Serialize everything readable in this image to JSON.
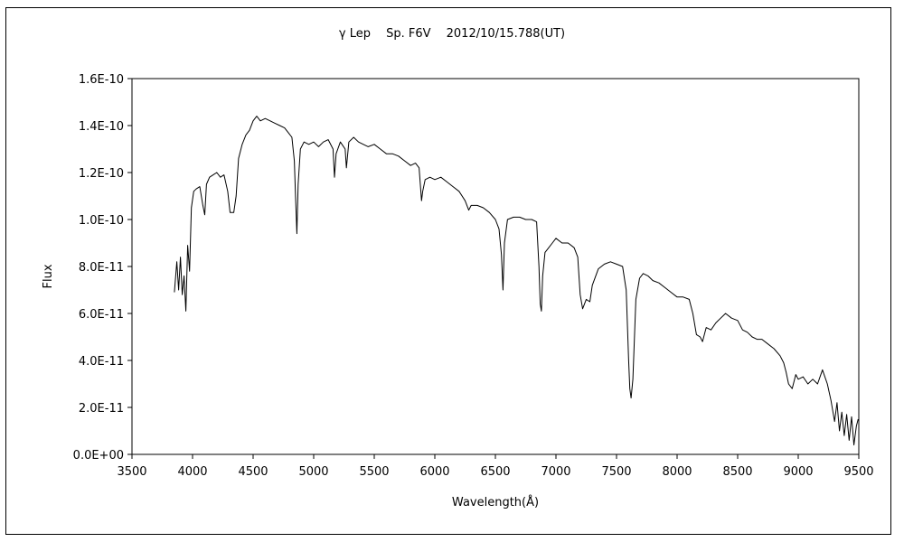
{
  "chart_data": {
    "type": "line",
    "title": "γ Lep　 Sp. F6V　 2012/10/15.788(UT)",
    "xlabel": "Wavelength(Å)",
    "ylabel": "Flux",
    "xlim": [
      3500,
      9500
    ],
    "ylim": [
      0,
      1.6e-10
    ],
    "x_ticks": [
      3500,
      4000,
      4500,
      5000,
      5500,
      6000,
      6500,
      7000,
      7500,
      8000,
      8500,
      9000,
      9500
    ],
    "x_tick_labels": [
      "3500",
      "4000",
      "4500",
      "5000",
      "5500",
      "6000",
      "6500",
      "7000",
      "7500",
      "8000",
      "8500",
      "9000",
      "9500"
    ],
    "y_ticks": [
      0,
      2e-11,
      4e-11,
      6e-11,
      8e-11,
      1e-10,
      1.2e-10,
      1.4e-10,
      1.6e-10
    ],
    "y_tick_labels": [
      "0.0E+00",
      "2.0E-11",
      "4.0E-11",
      "6.0E-11",
      "8.0E-11",
      "1.0E-10",
      "1.2E-10",
      "1.4E-10",
      "1.6E-10"
    ],
    "grid": false,
    "legend": "none",
    "series": [
      {
        "color": "#000000",
        "points": [
          [
            3850,
            6.9e-11
          ],
          [
            3870,
            8.2e-11
          ],
          [
            3885,
            7e-11
          ],
          [
            3900,
            8.4e-11
          ],
          [
            3915,
            6.8e-11
          ],
          [
            3930,
            7.6e-11
          ],
          [
            3945,
            6.1e-11
          ],
          [
            3960,
            8.9e-11
          ],
          [
            3975,
            7.8e-11
          ],
          [
            3990,
            1.05e-10
          ],
          [
            4010,
            1.12e-10
          ],
          [
            4030,
            1.13e-10
          ],
          [
            4060,
            1.14e-10
          ],
          [
            4085,
            1.06e-10
          ],
          [
            4101,
            1.02e-10
          ],
          [
            4115,
            1.15e-10
          ],
          [
            4140,
            1.18e-10
          ],
          [
            4170,
            1.19e-10
          ],
          [
            4200,
            1.2e-10
          ],
          [
            4230,
            1.18e-10
          ],
          [
            4260,
            1.19e-10
          ],
          [
            4290,
            1.12e-10
          ],
          [
            4310,
            1.03e-10
          ],
          [
            4340,
            1.03e-10
          ],
          [
            4360,
            1.1e-10
          ],
          [
            4380,
            1.26e-10
          ],
          [
            4410,
            1.32e-10
          ],
          [
            4440,
            1.36e-10
          ],
          [
            4470,
            1.38e-10
          ],
          [
            4500,
            1.42e-10
          ],
          [
            4530,
            1.44e-10
          ],
          [
            4560,
            1.42e-10
          ],
          [
            4600,
            1.43e-10
          ],
          [
            4640,
            1.42e-10
          ],
          [
            4680,
            1.41e-10
          ],
          [
            4720,
            1.4e-10
          ],
          [
            4760,
            1.39e-10
          ],
          [
            4790,
            1.37e-10
          ],
          [
            4820,
            1.35e-10
          ],
          [
            4840,
            1.25e-10
          ],
          [
            4850,
            1.1e-10
          ],
          [
            4861,
            9.4e-11
          ],
          [
            4872,
            1.15e-10
          ],
          [
            4890,
            1.3e-10
          ],
          [
            4920,
            1.33e-10
          ],
          [
            4960,
            1.32e-10
          ],
          [
            5000,
            1.33e-10
          ],
          [
            5040,
            1.31e-10
          ],
          [
            5080,
            1.33e-10
          ],
          [
            5120,
            1.34e-10
          ],
          [
            5160,
            1.3e-10
          ],
          [
            5172,
            1.18e-10
          ],
          [
            5185,
            1.28e-10
          ],
          [
            5220,
            1.33e-10
          ],
          [
            5260,
            1.3e-10
          ],
          [
            5270,
            1.22e-10
          ],
          [
            5290,
            1.33e-10
          ],
          [
            5330,
            1.35e-10
          ],
          [
            5370,
            1.33e-10
          ],
          [
            5410,
            1.32e-10
          ],
          [
            5450,
            1.31e-10
          ],
          [
            5500,
            1.32e-10
          ],
          [
            5550,
            1.3e-10
          ],
          [
            5600,
            1.28e-10
          ],
          [
            5650,
            1.28e-10
          ],
          [
            5700,
            1.27e-10
          ],
          [
            5750,
            1.25e-10
          ],
          [
            5800,
            1.23e-10
          ],
          [
            5840,
            1.24e-10
          ],
          [
            5870,
            1.22e-10
          ],
          [
            5890,
            1.08e-10
          ],
          [
            5900,
            1.12e-10
          ],
          [
            5920,
            1.17e-10
          ],
          [
            5960,
            1.18e-10
          ],
          [
            6000,
            1.17e-10
          ],
          [
            6050,
            1.18e-10
          ],
          [
            6100,
            1.16e-10
          ],
          [
            6150,
            1.14e-10
          ],
          [
            6200,
            1.12e-10
          ],
          [
            6250,
            1.08e-10
          ],
          [
            6280,
            1.04e-10
          ],
          [
            6300,
            1.06e-10
          ],
          [
            6350,
            1.06e-10
          ],
          [
            6400,
            1.05e-10
          ],
          [
            6450,
            1.03e-10
          ],
          [
            6500,
            1e-10
          ],
          [
            6530,
            9.6e-11
          ],
          [
            6550,
            8.5e-11
          ],
          [
            6563,
            7e-11
          ],
          [
            6575,
            9e-11
          ],
          [
            6600,
            1e-10
          ],
          [
            6650,
            1.01e-10
          ],
          [
            6700,
            1.01e-10
          ],
          [
            6750,
            1e-10
          ],
          [
            6800,
            1e-10
          ],
          [
            6840,
            9.9e-11
          ],
          [
            6860,
            8e-11
          ],
          [
            6870,
            6.4e-11
          ],
          [
            6880,
            6.1e-11
          ],
          [
            6890,
            7.6e-11
          ],
          [
            6910,
            8.6e-11
          ],
          [
            6940,
            8.8e-11
          ],
          [
            6970,
            9e-11
          ],
          [
            7000,
            9.2e-11
          ],
          [
            7050,
            9e-11
          ],
          [
            7100,
            9e-11
          ],
          [
            7150,
            8.8e-11
          ],
          [
            7180,
            8.4e-11
          ],
          [
            7200,
            6.8e-11
          ],
          [
            7220,
            6.2e-11
          ],
          [
            7250,
            6.6e-11
          ],
          [
            7280,
            6.5e-11
          ],
          [
            7300,
            7.2e-11
          ],
          [
            7350,
            7.9e-11
          ],
          [
            7400,
            8.1e-11
          ],
          [
            7450,
            8.2e-11
          ],
          [
            7500,
            8.1e-11
          ],
          [
            7550,
            8e-11
          ],
          [
            7580,
            7e-11
          ],
          [
            7600,
            4e-11
          ],
          [
            7610,
            2.8e-11
          ],
          [
            7620,
            2.4e-11
          ],
          [
            7635,
            3.2e-11
          ],
          [
            7660,
            6.6e-11
          ],
          [
            7690,
            7.5e-11
          ],
          [
            7720,
            7.7e-11
          ],
          [
            7760,
            7.6e-11
          ],
          [
            7800,
            7.4e-11
          ],
          [
            7850,
            7.3e-11
          ],
          [
            7900,
            7.1e-11
          ],
          [
            7950,
            6.9e-11
          ],
          [
            8000,
            6.7e-11
          ],
          [
            8050,
            6.7e-11
          ],
          [
            8100,
            6.6e-11
          ],
          [
            8130,
            6e-11
          ],
          [
            8160,
            5.1e-11
          ],
          [
            8190,
            5e-11
          ],
          [
            8210,
            4.8e-11
          ],
          [
            8240,
            5.4e-11
          ],
          [
            8280,
            5.3e-11
          ],
          [
            8320,
            5.6e-11
          ],
          [
            8360,
            5.8e-11
          ],
          [
            8400,
            6e-11
          ],
          [
            8450,
            5.8e-11
          ],
          [
            8500,
            5.7e-11
          ],
          [
            8540,
            5.3e-11
          ],
          [
            8580,
            5.2e-11
          ],
          [
            8620,
            5e-11
          ],
          [
            8660,
            4.9e-11
          ],
          [
            8700,
            4.9e-11
          ],
          [
            8750,
            4.7e-11
          ],
          [
            8800,
            4.5e-11
          ],
          [
            8850,
            4.2e-11
          ],
          [
            8880,
            3.9e-11
          ],
          [
            8900,
            3.5e-11
          ],
          [
            8920,
            3e-11
          ],
          [
            8950,
            2.8e-11
          ],
          [
            8980,
            3.4e-11
          ],
          [
            9000,
            3.2e-11
          ],
          [
            9040,
            3.3e-11
          ],
          [
            9080,
            3e-11
          ],
          [
            9120,
            3.2e-11
          ],
          [
            9160,
            3e-11
          ],
          [
            9200,
            3.6e-11
          ],
          [
            9240,
            3e-11
          ],
          [
            9270,
            2.3e-11
          ],
          [
            9300,
            1.4e-11
          ],
          [
            9320,
            2.2e-11
          ],
          [
            9340,
            1e-11
          ],
          [
            9360,
            1.8e-11
          ],
          [
            9380,
            8e-12
          ],
          [
            9400,
            1.7e-11
          ],
          [
            9420,
            6e-12
          ],
          [
            9440,
            1.6e-11
          ],
          [
            9460,
            4e-12
          ],
          [
            9480,
            1.2e-11
          ],
          [
            9495,
            1.5e-11
          ]
        ]
      }
    ]
  }
}
